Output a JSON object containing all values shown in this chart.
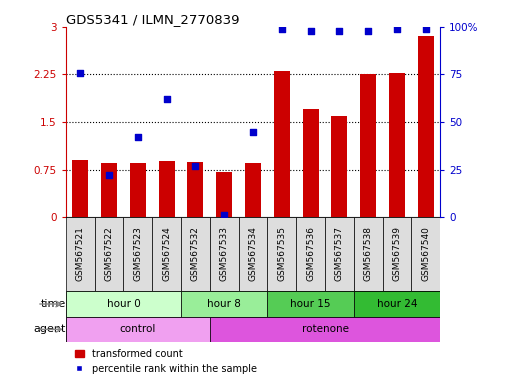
{
  "title": "GDS5341 / ILMN_2770839",
  "samples": [
    "GSM567521",
    "GSM567522",
    "GSM567523",
    "GSM567524",
    "GSM567532",
    "GSM567533",
    "GSM567534",
    "GSM567535",
    "GSM567536",
    "GSM567537",
    "GSM567538",
    "GSM567539",
    "GSM567540"
  ],
  "bar_values": [
    0.9,
    0.85,
    0.85,
    0.88,
    0.87,
    0.72,
    0.85,
    2.3,
    1.7,
    1.6,
    2.25,
    2.27,
    2.85
  ],
  "dot_values_pct": [
    76,
    22,
    42,
    62,
    27,
    1,
    45,
    99,
    98,
    98,
    98,
    99,
    99
  ],
  "bar_color": "#cc0000",
  "dot_color": "#0000cc",
  "ylim_left": [
    0,
    3
  ],
  "ylim_right": [
    0,
    100
  ],
  "yticks_left": [
    0,
    0.75,
    1.5,
    2.25,
    3
  ],
  "yticks_right": [
    0,
    25,
    50,
    75,
    100
  ],
  "ytick_labels_left": [
    "0",
    "0.75",
    "1.5",
    "2.25",
    "3"
  ],
  "ytick_labels_right": [
    "0",
    "25",
    "50",
    "75",
    "100%"
  ],
  "time_groups": [
    {
      "label": "hour 0",
      "start": 0,
      "end": 4,
      "color": "#ccffcc"
    },
    {
      "label": "hour 8",
      "start": 4,
      "end": 7,
      "color": "#99ee99"
    },
    {
      "label": "hour 15",
      "start": 7,
      "end": 10,
      "color": "#55cc55"
    },
    {
      "label": "hour 24",
      "start": 10,
      "end": 13,
      "color": "#33bb33"
    }
  ],
  "agent_groups": [
    {
      "label": "control",
      "start": 0,
      "end": 5,
      "color": "#f0a0f0"
    },
    {
      "label": "rotenone",
      "start": 5,
      "end": 13,
      "color": "#dd55dd"
    }
  ],
  "legend_bar_label": "transformed count",
  "legend_dot_label": "percentile rank within the sample",
  "time_label": "time",
  "agent_label": "agent",
  "bg_color": "#ffffff",
  "title_color": "#000000",
  "left_axis_color": "#cc0000",
  "right_axis_color": "#0000cc",
  "bar_width": 0.55
}
